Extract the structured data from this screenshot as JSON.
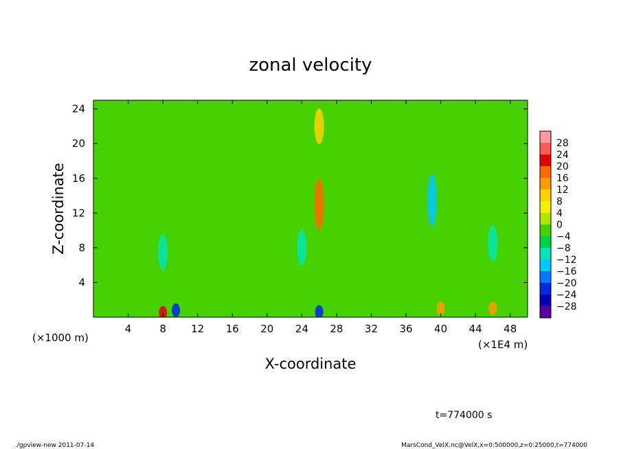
{
  "chart_data": {
    "type": "heatmap",
    "title": "zonal velocity",
    "xlabel": "X-coordinate",
    "ylabel": "Z-coordinate",
    "x_unit": "(×1E4 m)",
    "y_unit": "(×1000 m)",
    "xlim": [
      0,
      50
    ],
    "ylim": [
      0,
      25
    ],
    "x_ticks": [
      "4",
      "8",
      "12",
      "16",
      "20",
      "24",
      "28",
      "32",
      "36",
      "40",
      "44",
      "48"
    ],
    "y_ticks": [
      "4",
      "8",
      "12",
      "16",
      "20",
      "24"
    ],
    "colorbar": {
      "levels": [
        "28",
        "24",
        "20",
        "16",
        "12",
        "8",
        "4",
        "0",
        "−4",
        "−8",
        "−12",
        "−16",
        "−20",
        "−24",
        "−28"
      ],
      "colors": [
        "#ff9a9a",
        "#ff5a5a",
        "#e60000",
        "#ff6a00",
        "#ff9c00",
        "#ffd200",
        "#f2f200",
        "#aee600",
        "#46d200",
        "#00d246",
        "#00e6b4",
        "#00c8ff",
        "#0078ff",
        "#0028e6",
        "#0000b4",
        "#5a00a0"
      ]
    },
    "features": [
      {
        "x": 26,
        "z": 13,
        "value": 16
      },
      {
        "x": 26,
        "z": 22,
        "value": 10
      },
      {
        "x": 39,
        "z": 13.5,
        "value": -14
      },
      {
        "x": 8,
        "z": 7.5,
        "value": -12
      },
      {
        "x": 24,
        "z": 8,
        "value": -10
      },
      {
        "x": 46,
        "z": 8.5,
        "value": -10
      },
      {
        "x": 8,
        "z": 0.5,
        "value": 22
      },
      {
        "x": 9.5,
        "z": 0.8,
        "value": -24
      },
      {
        "x": 26,
        "z": 0.6,
        "value": -22
      },
      {
        "x": 40,
        "z": 1,
        "value": 14
      },
      {
        "x": 46,
        "z": 1,
        "value": 14
      }
    ]
  },
  "annotations": {
    "time": "t=774000 s",
    "footer_left": "./gpview-new   2011-07-14",
    "footer_right": "MarsCond_VelX.nc@VelX,x=0:500000,z=0:25000,t=774000"
  }
}
